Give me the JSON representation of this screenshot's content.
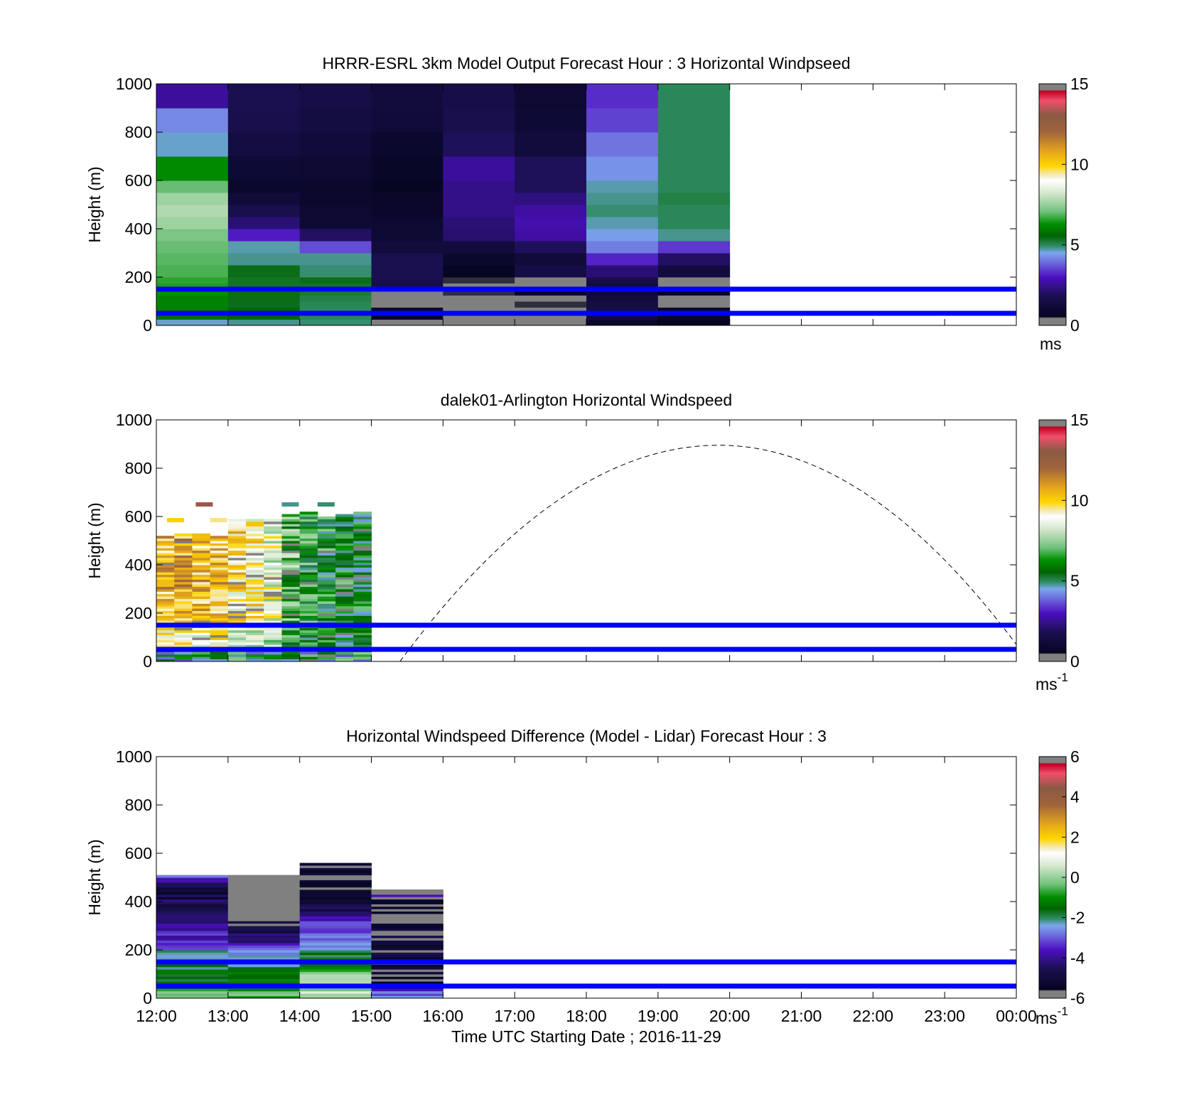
{
  "figure": {
    "xlabel": "Time UTC  Starting Date ; 2016-11-29",
    "x_tick_labels": [
      "12:00",
      "13:00",
      "14:00",
      "15:00",
      "16:00",
      "17:00",
      "18:00",
      "19:00",
      "20:00",
      "21:00",
      "22:00",
      "23:00",
      "00:00"
    ]
  },
  "chart_data": [
    {
      "type": "heatmap",
      "title": "HRRR-ESRL 3km Model Output   Forecast Hour : 3 Horizontal Windpseed",
      "ylabel": "Height (m)",
      "xlim_hours": [
        12,
        24
      ],
      "ylim": [
        0,
        1000
      ],
      "y_ticks": [
        0,
        200,
        400,
        600,
        800,
        1000
      ],
      "grid": false,
      "colorbar": {
        "range": [
          0,
          15
        ],
        "ticks": [
          0,
          5,
          10,
          15
        ],
        "unit_label": "ms",
        "unit_sup": ""
      },
      "reference_lines_m": [
        50,
        150
      ],
      "heights_m": [
        25,
        50,
        75,
        100,
        125,
        150,
        175,
        200,
        250,
        300,
        350,
        400,
        450,
        500,
        550,
        600,
        700,
        800,
        900,
        1000
      ],
      "columns": [
        {
          "t0": 12,
          "t1": 13,
          "speeds": [
            4.6,
            5.8,
            6.0,
            6.1,
            6.1,
            6.3,
            6.5,
            6.6,
            6.8,
            6.9,
            7.0,
            7.2,
            7.6,
            7.8,
            7.6,
            7.0,
            6.2,
            4.6,
            4.2,
            2.6
          ]
        },
        {
          "t0": 13,
          "t1": 14,
          "speeds": [
            4.8,
            5.6,
            5.6,
            5.4,
            5.4,
            5.4,
            5.3,
            5.3,
            5.4,
            4.8,
            4.7,
            3.1,
            2.2,
            1.7,
            1.2,
            0.9,
            1.1,
            1.4,
            1.7,
            1.8
          ]
        },
        {
          "t0": 14,
          "t1": 15,
          "speeds": [
            4.9,
            5.0,
            5.0,
            5.0,
            5.1,
            5.2,
            5.3,
            5.4,
            4.9,
            4.8,
            3.6,
            2.0,
            1.1,
            1.0,
            0.9,
            0.9,
            1.0,
            1.2,
            1.4,
            1.6
          ]
        },
        {
          "t0": 15,
          "t1": 16,
          "speeds": [
            0.4,
            0.7,
            0.9,
            0.1,
            0.4,
            0.4,
            1.6,
            1.7,
            1.8,
            1.8,
            1.3,
            1.1,
            1.0,
            0.8,
            0.8,
            0.6,
            0.7,
            0.9,
            1.2,
            1.3
          ]
        },
        {
          "t0": 16,
          "t1": 17,
          "speeds": [
            0.3,
            0.4,
            0.4,
            0.3,
            0.4,
            0.5,
            0.0,
            0.5,
            0.6,
            0.9,
            1.3,
            2.1,
            2.2,
            2.4,
            2.4,
            2.4,
            2.6,
            1.9,
            1.7,
            1.6
          ]
        },
        {
          "t0": 17,
          "t1": 18,
          "speeds": [
            0.4,
            0.4,
            0.3,
            0.5,
            0.4,
            0.8,
            0.4,
            0.0,
            1.5,
            1.2,
            1.9,
            2.7,
            2.8,
            2.7,
            2.3,
            1.9,
            1.9,
            1.3,
            1.1,
            1.0
          ]
        },
        {
          "t0": 18,
          "t1": 19,
          "speeds": [
            0.9,
            1.3,
            1.5,
            1.5,
            1.3,
            1.1,
            1.3,
            1.6,
            2.2,
            3.2,
            4.1,
            4.4,
            4.7,
            4.9,
            4.8,
            4.7,
            4.3,
            4.0,
            3.5,
            3.3
          ]
        },
        {
          "t0": 19,
          "t1": 20,
          "speeds": [
            0.6,
            0.7,
            0.8,
            0.3,
            0.4,
            0.6,
            0.3,
            0.2,
            1.3,
            2.0,
            3.4,
            4.8,
            5.0,
            5.0,
            5.1,
            5.0,
            5.0,
            5.0,
            5.0,
            5.0
          ]
        }
      ]
    },
    {
      "type": "heatmap",
      "title": "dalek01-Arlington  Horizontal Windspeed",
      "ylabel": "Height (m)",
      "xlim_hours": [
        12,
        24
      ],
      "ylim": [
        0,
        1000
      ],
      "y_ticks": [
        0,
        200,
        400,
        600,
        800,
        1000
      ],
      "grid": false,
      "colorbar": {
        "range": [
          0,
          15
        ],
        "ticks": [
          0,
          5,
          10,
          15
        ],
        "unit_label": "ms",
        "unit_sup": "-1"
      },
      "reference_lines_m": [
        50,
        150
      ],
      "data_extent": {
        "t0": 12,
        "t1": 15,
        "column_hours": 0.25,
        "bin_m": 10
      },
      "column_tops_m": [
        520,
        530,
        530,
        520,
        590,
        590,
        590,
        610,
        615,
        600,
        610,
        615
      ],
      "column_mean_speed_ms": [
        10.5,
        10.8,
        10.4,
        10.6,
        9.6,
        9.3,
        8.6,
        6.8,
        6.2,
        6.0,
        5.9,
        5.7
      ],
      "sparse_points": [
        {
          "t": 12.5,
          "h_m": 650,
          "speed": 13.2
        },
        {
          "t": 12.1,
          "h_m": 585,
          "speed": 10.0
        },
        {
          "t": 12.7,
          "h_m": 585,
          "speed": 9.5
        },
        {
          "t": 13.7,
          "h_m": 650,
          "speed": 4.8
        },
        {
          "t": 14.2,
          "h_m": 650,
          "speed": 4.9
        }
      ],
      "dashed_curve": {
        "t0": 15.4,
        "t1": 24,
        "h_start_m": 0,
        "peak_m": 895,
        "peak_t": 19.85,
        "h_end_m": 70
      }
    },
    {
      "type": "heatmap",
      "title": "Horizontal Windspeed Difference (Model - Lidar) Forecast Hour : 3",
      "ylabel": "Height (m)",
      "xlim_hours": [
        12,
        24
      ],
      "ylim": [
        0,
        1000
      ],
      "y_ticks": [
        0,
        200,
        400,
        600,
        800,
        1000
      ],
      "grid": false,
      "colorbar": {
        "range": [
          -6,
          6
        ],
        "ticks": [
          -6,
          -4,
          -2,
          0,
          2,
          4,
          6
        ],
        "unit_label": "ms",
        "unit_sup": "-1"
      },
      "reference_lines_m": [
        50,
        150
      ],
      "columns": [
        {
          "t0": 12,
          "t1": 13,
          "top_m": 505,
          "profile": [
            [
              20,
              -0.5
            ],
            [
              60,
              -1.3
            ],
            [
              100,
              -1.6
            ],
            [
              150,
              -1.9
            ],
            [
              200,
              -2.6
            ],
            [
              260,
              -3.6
            ],
            [
              300,
              -4.2
            ],
            [
              360,
              -4.5
            ],
            [
              420,
              -4.8
            ],
            [
              470,
              -5.0
            ],
            [
              505,
              -2.4
            ]
          ]
        },
        {
          "t0": 13,
          "t1": 14,
          "top_m": 505,
          "profile": [
            [
              20,
              -0.4
            ],
            [
              60,
              -1.2
            ],
            [
              100,
              -1.6
            ],
            [
              150,
              -2.4
            ],
            [
              200,
              -2.9
            ],
            [
              230,
              -4.0
            ],
            [
              260,
              -4.4
            ],
            [
              310,
              -5.4
            ],
            [
              505,
              6.2
            ]
          ]
        },
        {
          "t0": 14,
          "t1": 15,
          "top_m": 560,
          "profile": [
            [
              20,
              0.3
            ],
            [
              60,
              0.1
            ],
            [
              100,
              -0.3
            ],
            [
              150,
              -1.0
            ],
            [
              200,
              -2.2
            ],
            [
              260,
              -2.8
            ],
            [
              310,
              -3.0
            ],
            [
              360,
              -4.5
            ],
            [
              420,
              -5.0
            ],
            [
              480,
              -5.4
            ],
            [
              520,
              -5.2
            ],
            [
              560,
              -5.6
            ]
          ]
        },
        {
          "t0": 15,
          "t1": 16,
          "top_m": 450,
          "profile": [
            [
              20,
              -2.8
            ],
            [
              60,
              -5.8
            ],
            [
              100,
              -5.6
            ],
            [
              200,
              -5.2
            ],
            [
              300,
              -5.5
            ],
            [
              360,
              -5.8
            ],
            [
              420,
              -5.6
            ],
            [
              450,
              6.2
            ]
          ]
        }
      ]
    }
  ]
}
